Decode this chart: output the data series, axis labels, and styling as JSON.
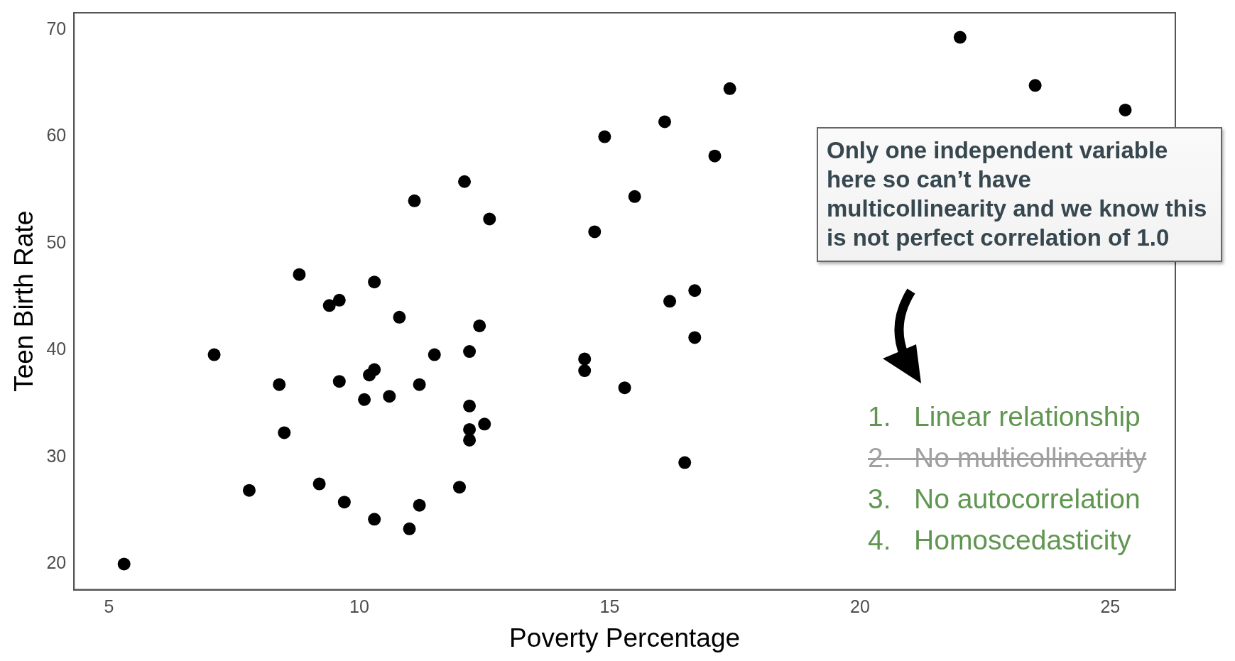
{
  "chart_data": {
    "type": "scatter",
    "xlabel": "Poverty Percentage",
    "ylabel": "Teen Birth Rate",
    "x": [
      5.3,
      7.1,
      7.8,
      8.4,
      8.5,
      8.8,
      9.2,
      9.4,
      9.6,
      9.6,
      9.7,
      10.1,
      10.2,
      10.3,
      10.3,
      10.3,
      10.6,
      10.8,
      11.0,
      11.1,
      11.2,
      11.2,
      11.5,
      12.0,
      12.1,
      12.2,
      12.2,
      12.2,
      12.2,
      12.4,
      12.5,
      12.6,
      14.5,
      14.5,
      14.7,
      14.9,
      15.3,
      15.5,
      16.1,
      16.2,
      16.5,
      16.7,
      16.7,
      17.1,
      17.4,
      22.0,
      23.5,
      25.3
    ],
    "series": [
      {
        "color": "#000000",
        "values": [
          20.0,
          39.6,
          26.9,
          36.8,
          32.3,
          47.1,
          27.5,
          44.2,
          44.7,
          37.1,
          25.8,
          35.4,
          37.7,
          38.2,
          46.4,
          24.2,
          35.7,
          43.1,
          23.3,
          54.0,
          36.8,
          25.5,
          39.6,
          27.2,
          55.8,
          39.9,
          34.8,
          32.6,
          31.6,
          42.3,
          33.1,
          52.3,
          39.2,
          38.1,
          51.1,
          60.0,
          36.5,
          54.4,
          61.4,
          44.6,
          29.5,
          45.6,
          41.2,
          58.2,
          64.5,
          69.3,
          64.8,
          62.5
        ]
      }
    ],
    "xlim": [
      4.3,
      26.3
    ],
    "xticks": [
      5,
      10,
      15,
      20,
      25
    ],
    "ylim": [
      17.6,
      71.6
    ],
    "yticks": [
      20,
      30,
      40,
      50,
      60,
      70
    ],
    "grid": false,
    "legend": false,
    "marker": "circle",
    "annotations": [
      "Only one independent variable here so can’t have multicollinearity and we know this is not perfect correlation of 1.0",
      "1.   Linear relationship",
      "2.   No multicollinearity",
      "3.   No autocorrelation",
      "4.   Homoscedasticity"
    ]
  }
}
